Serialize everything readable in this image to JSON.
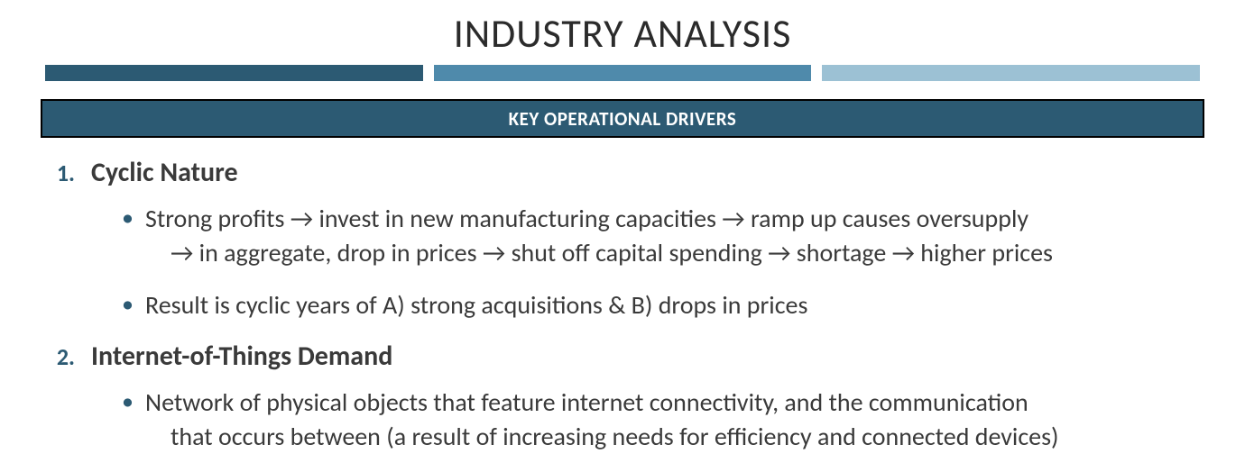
{
  "title": "INDUSTRY ANALYSIS",
  "bar_colors": [
    "#2c5a73",
    "#4f8aab",
    "#9cc1d4"
  ],
  "banner": {
    "text": "KEY OPERATIONAL DRIVERS",
    "bg_color": "#2c5a73",
    "text_color": "#ffffff"
  },
  "number_color": "#2c5a73",
  "body_text_color": "#3a3a3a",
  "drivers": [
    {
      "num": "1.",
      "label": "Cyclic Nature",
      "bullets": [
        {
          "line1": "Strong profits → invest in new manufacturing capacities → ramp up causes oversupply",
          "line2": "→ in aggregate, drop in prices → shut off capital spending → shortage → higher prices"
        },
        {
          "line1": "Result is cyclic years of A) strong acquisitions & B) drops in prices"
        }
      ]
    },
    {
      "num": "2.",
      "label": "Internet-of-Things Demand",
      "bullets": [
        {
          "line1": "Network of physical objects that feature internet connectivity, and the communication",
          "line2": "that occurs between (a result of increasing needs for efficiency and connected devices)"
        }
      ]
    }
  ]
}
